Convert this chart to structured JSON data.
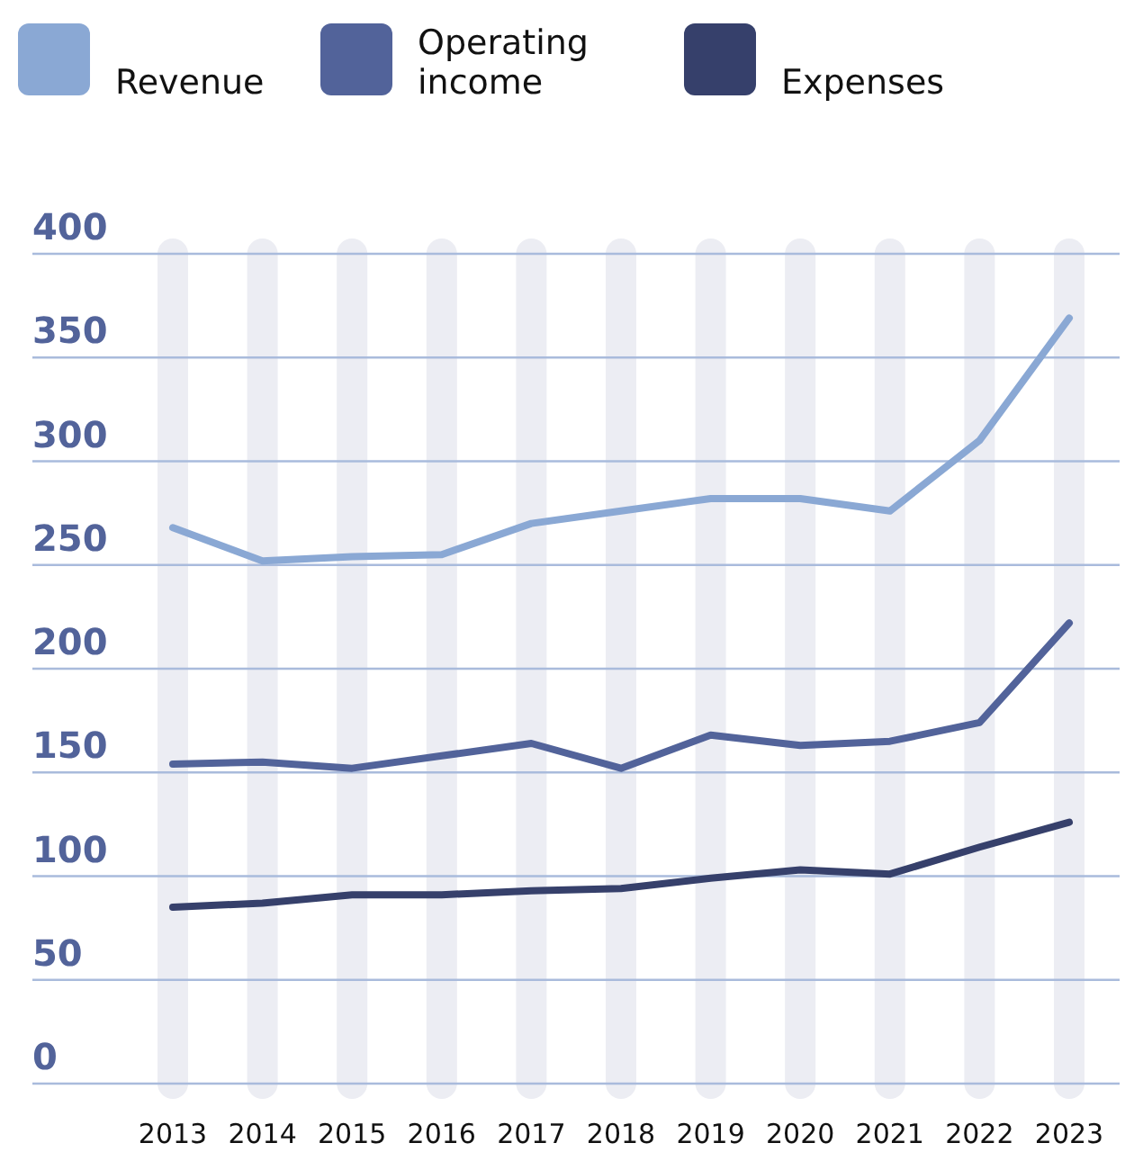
{
  "chart_data": {
    "type": "line",
    "categories": [
      "2013",
      "2014",
      "2015",
      "2016",
      "2017",
      "2018",
      "2019",
      "2020",
      "2021",
      "2022",
      "2023"
    ],
    "series": [
      {
        "name": "Revenue",
        "color": "#8aa8d4",
        "values": [
          268,
          252,
          254,
          255,
          270,
          276,
          282,
          282,
          276,
          310,
          369
        ]
      },
      {
        "name": "Operating income",
        "color": "#52639a",
        "values": [
          154,
          155,
          152,
          158,
          164,
          152,
          168,
          163,
          165,
          174,
          222
        ]
      },
      {
        "name": "Expenses",
        "color": "#36406b",
        "values": [
          85,
          87,
          91,
          91,
          93,
          94,
          99,
          103,
          101,
          114,
          126
        ]
      }
    ],
    "ylim": [
      0,
      400
    ],
    "yticks": [
      0,
      50,
      100,
      150,
      200,
      250,
      300,
      350,
      400
    ],
    "grid": true,
    "legend": "top left",
    "marker": "none",
    "line_style": "solid"
  }
}
